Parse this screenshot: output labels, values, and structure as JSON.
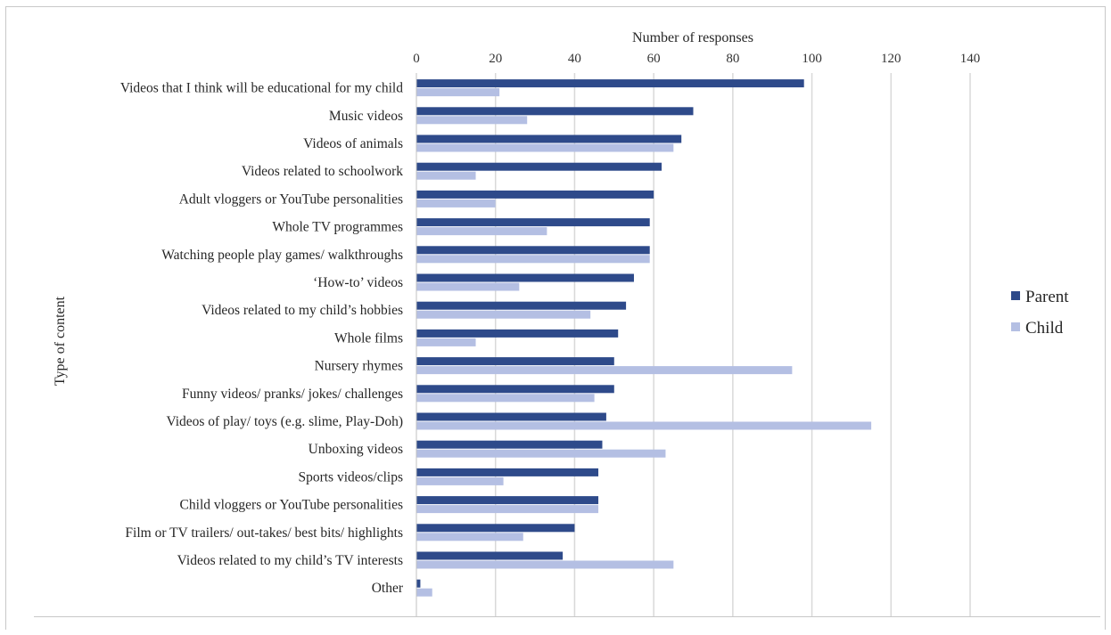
{
  "chart_data": {
    "type": "bar",
    "orientation": "horizontal",
    "title": "",
    "xlabel": "Number of responses",
    "ylabel": "Type of content",
    "xlim": [
      0,
      140
    ],
    "xticks": [
      0,
      20,
      40,
      60,
      80,
      100,
      120,
      140
    ],
    "grid": true,
    "legend_position": "right",
    "categories": [
      "Videos that I think will be educational for my child",
      "Music videos",
      "Videos of animals",
      "Videos related to schoolwork",
      "Adult vloggers or YouTube personalities",
      "Whole TV programmes",
      "Watching people play games/ walkthroughs",
      "‘How-to’ videos",
      "Videos related to my child’s hobbies",
      "Whole films",
      "Nursery rhymes",
      "Funny videos/ pranks/ jokes/ challenges",
      "Videos of play/ toys  (e.g. slime, Play-Doh)",
      "Unboxing videos",
      "Sports videos/clips",
      "Child vloggers or YouTube personalities",
      "Film or TV trailers/ out-takes/ best bits/ highlights",
      "Videos related to my child’s TV interests",
      "Other"
    ],
    "series": [
      {
        "name": "Parent",
        "color": "#2e4a8a",
        "values": [
          98,
          70,
          67,
          62,
          60,
          59,
          59,
          55,
          53,
          51,
          50,
          50,
          48,
          47,
          46,
          46,
          40,
          37,
          1
        ]
      },
      {
        "name": "Child",
        "color": "#b4bfe3",
        "values": [
          21,
          28,
          65,
          15,
          20,
          33,
          59,
          26,
          44,
          15,
          95,
          45,
          115,
          63,
          22,
          46,
          27,
          65,
          4
        ]
      }
    ]
  }
}
